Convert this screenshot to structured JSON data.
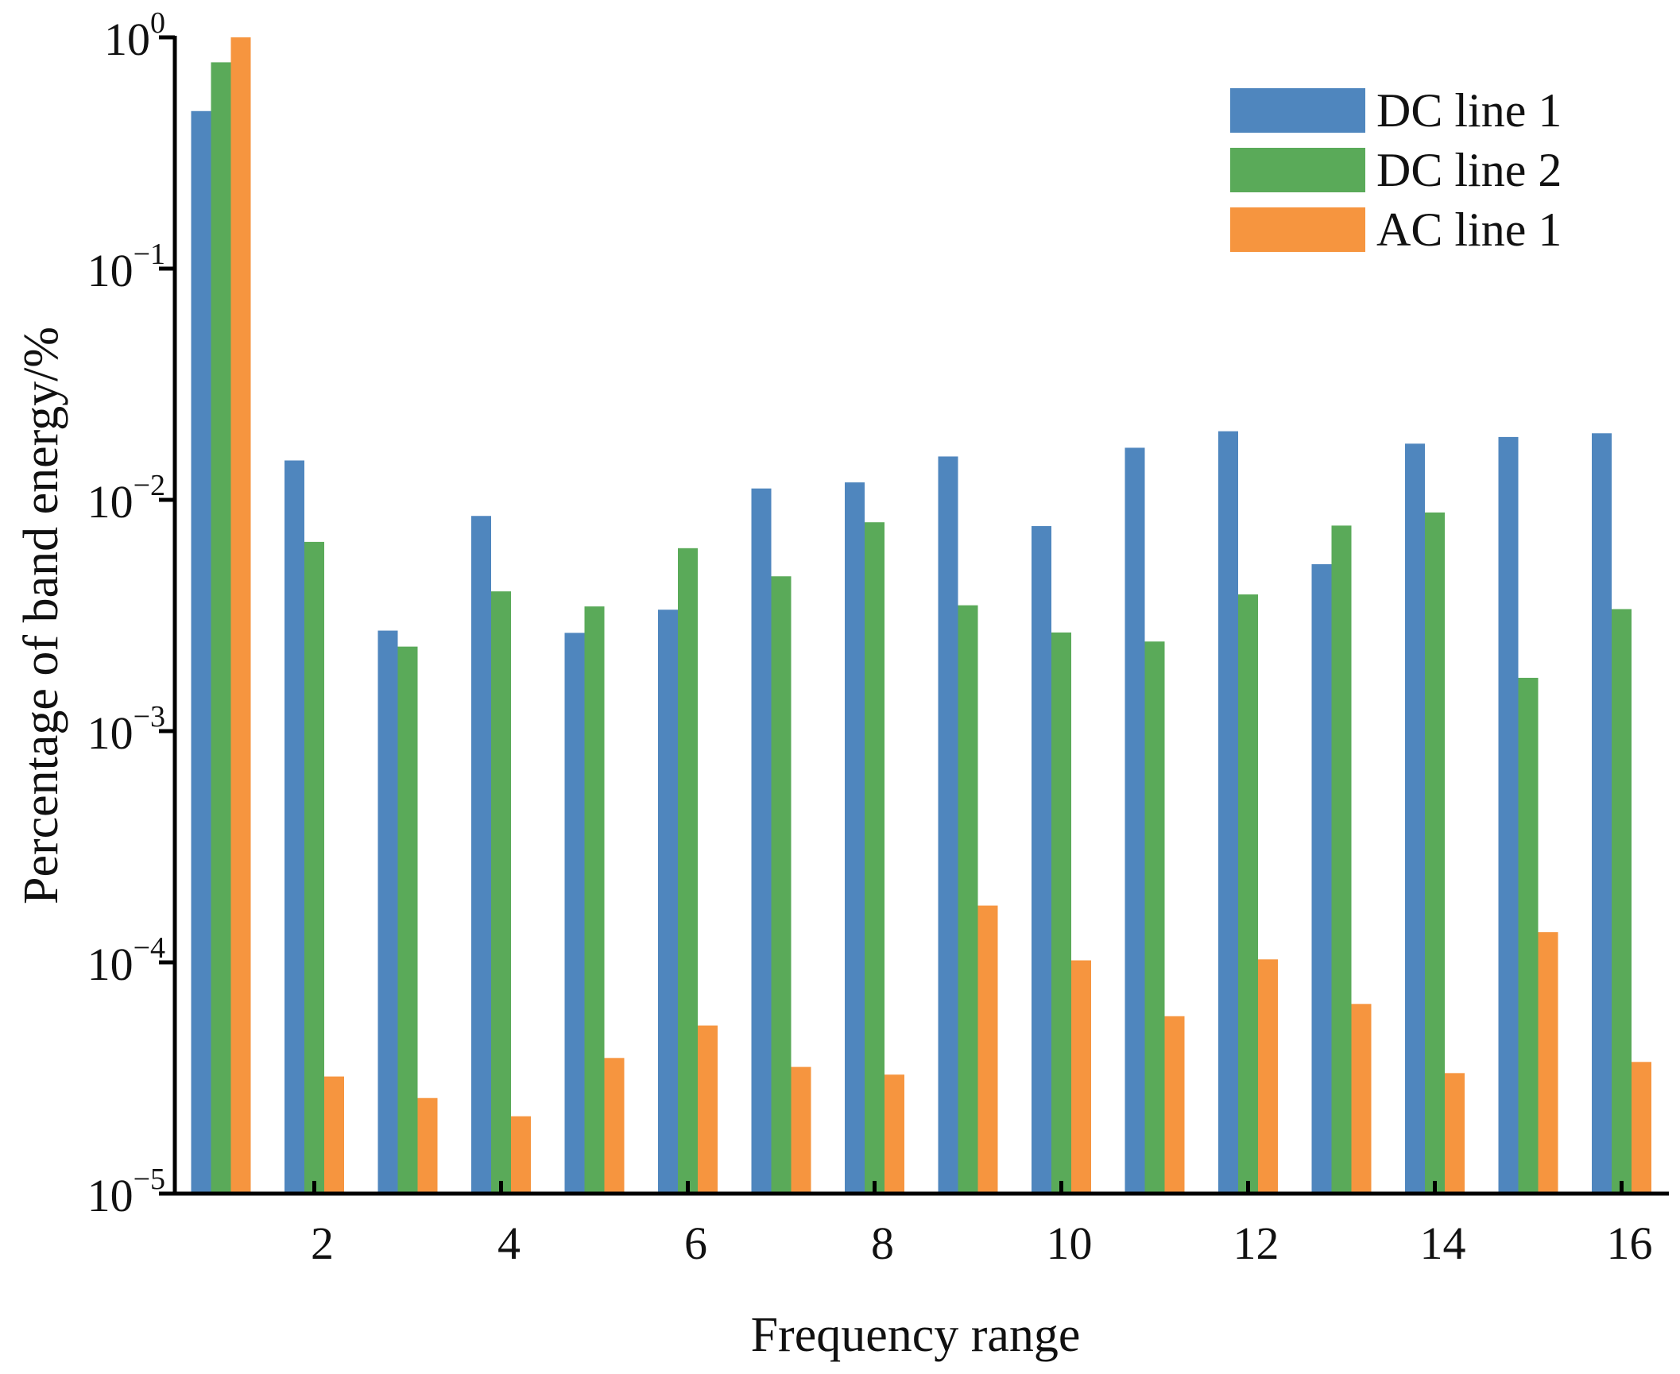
{
  "chart_data": {
    "type": "bar",
    "title": "",
    "xlabel": "Frequency range",
    "ylabel": "Percentage of band energy/%",
    "yscale": "log",
    "ylim": [
      1e-05,
      1
    ],
    "y_ticks": [
      {
        "value": 1,
        "base": "10",
        "exp": "0"
      },
      {
        "value": 0.1,
        "base": "10",
        "exp": "−1"
      },
      {
        "value": 0.01,
        "base": "10",
        "exp": "−2"
      },
      {
        "value": 0.001,
        "base": "10",
        "exp": "−3"
      },
      {
        "value": 0.0001,
        "base": "10",
        "exp": "−4"
      },
      {
        "value": 1e-05,
        "base": "10",
        "exp": "−5"
      }
    ],
    "categories": [
      1,
      2,
      3,
      4,
      5,
      6,
      7,
      8,
      9,
      10,
      11,
      12,
      13,
      14,
      15,
      16
    ],
    "x_ticks": [
      {
        "value": 2,
        "label": "2"
      },
      {
        "value": 4,
        "label": "4"
      },
      {
        "value": 6,
        "label": "6"
      },
      {
        "value": 8,
        "label": "8"
      },
      {
        "value": 10,
        "label": "10"
      },
      {
        "value": 12,
        "label": "12"
      },
      {
        "value": 14,
        "label": "14"
      },
      {
        "value": 16,
        "label": "16"
      }
    ],
    "legend_position": "top-right",
    "series": [
      {
        "name": "DC line 1",
        "color": "#4f86be",
        "values": [
          0.48,
          0.0148,
          0.00272,
          0.00852,
          0.00266,
          0.00335,
          0.0112,
          0.0119,
          0.0154,
          0.0077,
          0.0168,
          0.0198,
          0.00527,
          0.0175,
          0.0187,
          0.0194
        ]
      },
      {
        "name": "DC line 2",
        "color": "#5aaa59",
        "values": [
          0.78,
          0.00658,
          0.00232,
          0.00402,
          0.00346,
          0.00618,
          0.00467,
          0.008,
          0.0035,
          0.00267,
          0.00244,
          0.0039,
          0.00774,
          0.00882,
          0.0017,
          0.00337
        ]
      },
      {
        "name": "AC line 1",
        "color": "#f6953f",
        "values": [
          1.0,
          3.21e-05,
          2.59e-05,
          2.16e-05,
          3.86e-05,
          5.33e-05,
          3.53e-05,
          3.27e-05,
          0.000176,
          0.000102,
          5.85e-05,
          0.000103,
          6.61e-05,
          3.32e-05,
          0.000135,
          3.71e-05
        ]
      }
    ]
  }
}
